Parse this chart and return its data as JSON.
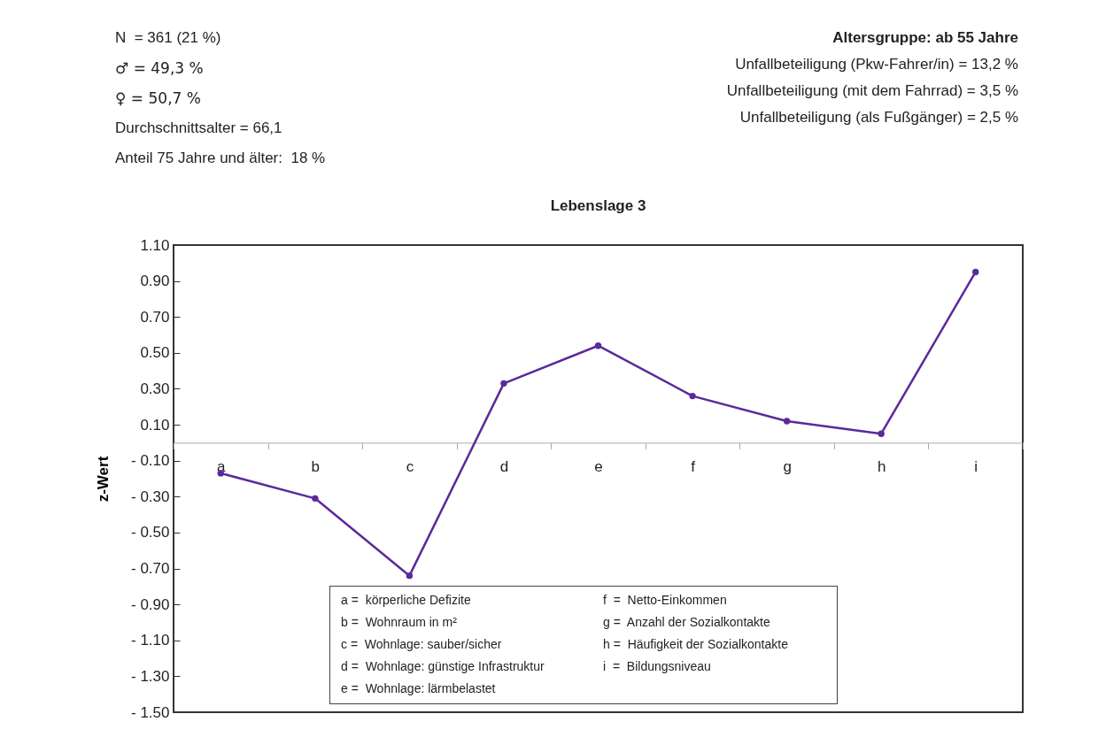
{
  "chart_data": {
    "type": "line",
    "title": "Lebenslage 3",
    "ylabel": "z-Wert",
    "categories": [
      "a",
      "b",
      "c",
      "d",
      "e",
      "f",
      "g",
      "h",
      "i"
    ],
    "series": [
      {
        "color": "#5b2a9a",
        "values": [
          -0.17,
          -0.31,
          -0.74,
          0.33,
          0.54,
          0.26,
          0.12,
          0.05,
          0.95
        ]
      }
    ],
    "ylim": [
      -1.5,
      1.1
    ],
    "yticks": [
      {
        "value": -1.5,
        "label": "- 1.50"
      },
      {
        "value": -1.3,
        "label": "- 1.30"
      },
      {
        "value": -1.1,
        "label": "- 1.10"
      },
      {
        "value": -0.9,
        "label": "- 0.90"
      },
      {
        "value": -0.7,
        "label": "- 0.70"
      },
      {
        "value": -0.5,
        "label": "- 0.50"
      },
      {
        "value": -0.3,
        "label": "- 0.30"
      },
      {
        "value": -0.1,
        "label": "- 0.10"
      },
      {
        "value": 0.1,
        "label": "0.10"
      },
      {
        "value": 0.3,
        "label": "0.30"
      },
      {
        "value": 0.5,
        "label": "0.50"
      },
      {
        "value": 0.7,
        "label": "0.70"
      },
      {
        "value": 0.9,
        "label": "0.90"
      },
      {
        "value": 1.1,
        "label": "1.10"
      }
    ],
    "marker": "circle",
    "line_style": "solid",
    "grid": false,
    "legend": false,
    "annotations": [
      "N  = 361 (21 %)",
      "♂ = 49,3 %",
      "♀ = 50,7 %",
      "Durchschnittsalter = 66,1",
      "Anteil 75 Jahre und älter:  18 %",
      "Altersgruppe: ab 55 Jahre",
      "Unfallbeteiligung (Pkw-Fahrer/in) = 13,2 %",
      "Unfallbeteiligung (mit dem Fahrrad) = 3,5 %",
      "Unfallbeteiligung (als Fußgänger) = 2,5 %",
      "a =  körperliche Defizite",
      "b =  Wohnraum in m²",
      "c =  Wohnlage: sauber/sicher",
      "d =  Wohnlage: günstige Infrastruktur",
      "e =  Wohnlage: lärmbelastet",
      "f  =  Netto-Einkommen",
      "g =  Anzahl der Sozialkontakte",
      "h =  Häufigkeit der Sozialkontakte",
      "i  =  Bildungsniveau"
    ]
  }
}
